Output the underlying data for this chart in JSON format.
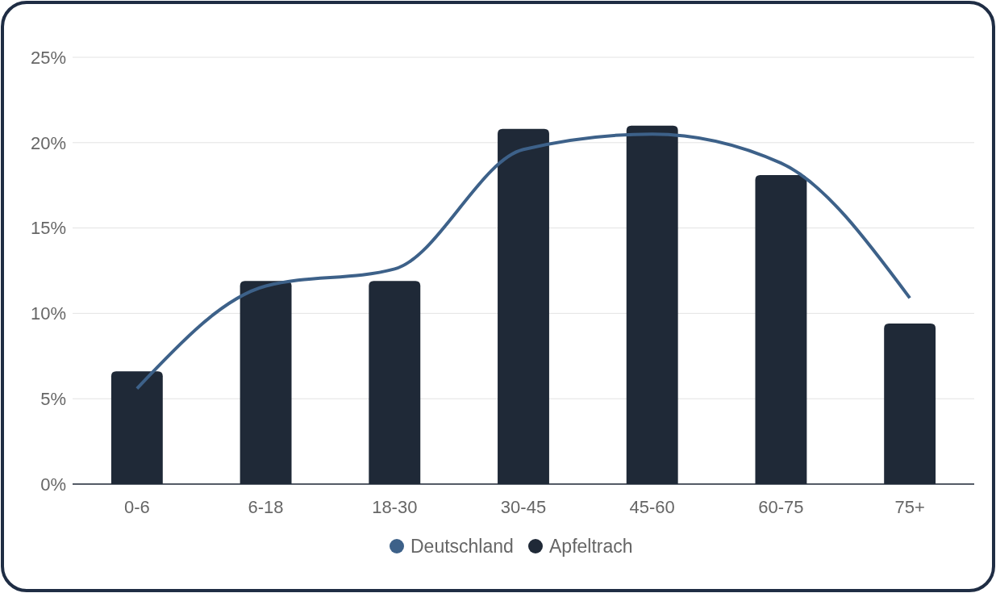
{
  "chart_data": {
    "type": "bar",
    "categories": [
      "0-6",
      "6-18",
      "18-30",
      "30-45",
      "45-60",
      "60-75",
      "75+"
    ],
    "series": [
      {
        "name": "Deutschland",
        "type": "line",
        "color": "#3d6189",
        "values": [
          5.6,
          11.6,
          12.6,
          19.6,
          20.5,
          18.8,
          10.9
        ]
      },
      {
        "name": "Apfeltrach",
        "color": "#1f2937",
        "values": [
          6.6,
          11.9,
          11.9,
          20.8,
          21.0,
          18.1,
          9.4
        ]
      }
    ],
    "ylim": [
      0,
      25
    ],
    "yticks": [
      {
        "value": 0,
        "label": "0%"
      },
      {
        "value": 5,
        "label": "5%"
      },
      {
        "value": 10,
        "label": "10%"
      },
      {
        "value": 15,
        "label": "15%"
      },
      {
        "value": 20,
        "label": "20%"
      },
      {
        "value": 25,
        "label": "25%"
      }
    ],
    "grid": "y",
    "legend": "bottom",
    "marker": "none"
  }
}
